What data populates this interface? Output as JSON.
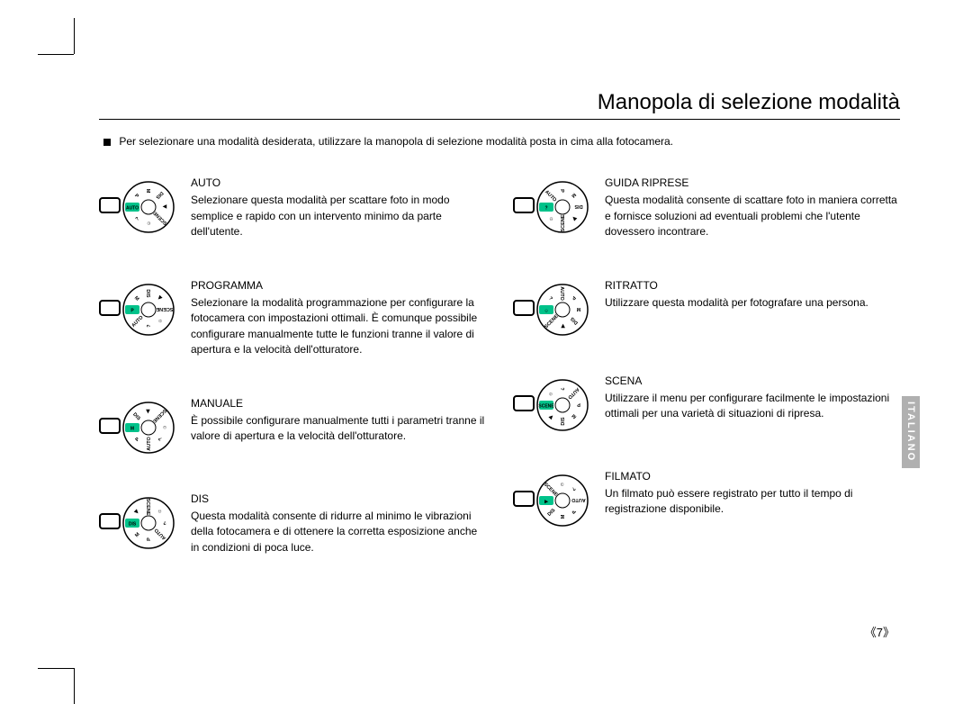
{
  "page": {
    "title": "Manopola di selezione modalità",
    "intro": "Per selezionare una modalità desiderata, utilizzare la manopola di selezione modalità posta in cima alla fotocamera.",
    "page_number": "《7》",
    "side_tab": "ITALIANO",
    "side_tab_bg": "#b0b0b0",
    "side_tab_text_color": "#ffffff"
  },
  "dial": {
    "positions": [
      "AUTO",
      "P",
      "M",
      "DIS",
      "MOVIE",
      "SCENE",
      "PORTRAIT",
      "GUIDE"
    ],
    "highlight_color": "#00c28a",
    "stroke": "#000000"
  },
  "modes_left": [
    {
      "key": "auto",
      "title": "AUTO",
      "desc": "Selezionare questa modalità per scattare foto in modo semplice e rapido con un intervento minimo da parte dell'utente.",
      "highlight": "AUTO"
    },
    {
      "key": "programma",
      "title": "PROGRAMMA",
      "desc": "Selezionare la modalità programmazione per configurare la fotocamera con impostazioni ottimali. È comunque possibile configurare manualmente tutte le funzioni tranne il valore di apertura e la velocità dell'otturatore.",
      "highlight": "P"
    },
    {
      "key": "manuale",
      "title": "MANUALE",
      "desc": "È possibile configurare manualmente tutti i parametri tranne il valore di apertura e la velocità dell'otturatore.",
      "highlight": "M"
    },
    {
      "key": "dis",
      "title": "DIS",
      "desc": "Questa modalità consente di ridurre al minimo le vibrazioni della fotocamera e di ottenere la corretta esposizione anche in condizioni di poca luce.",
      "highlight": "DIS"
    }
  ],
  "modes_right": [
    {
      "key": "guida",
      "title": "GUIDA RIPRESE",
      "desc": "Questa modalità consente di scattare foto in maniera corretta e fornisce soluzioni ad eventuali problemi che l'utente dovessero incontrare.",
      "highlight": "GUIDE"
    },
    {
      "key": "ritratto",
      "title": "RITRATTO",
      "desc": "Utilizzare questa modalità per fotografare una persona.",
      "highlight": "PORTRAIT"
    },
    {
      "key": "scena",
      "title": "SCENA",
      "desc": "Utilizzare il menu per configurare facilmente le impostazioni ottimali per una varietà di situazioni di ripresa.",
      "highlight": "SCENE"
    },
    {
      "key": "filmato",
      "title": "FILMATO",
      "desc": "Un filmato può essere registrato per tutto il tempo di registrazione disponibile.",
      "highlight": "MOVIE"
    }
  ]
}
